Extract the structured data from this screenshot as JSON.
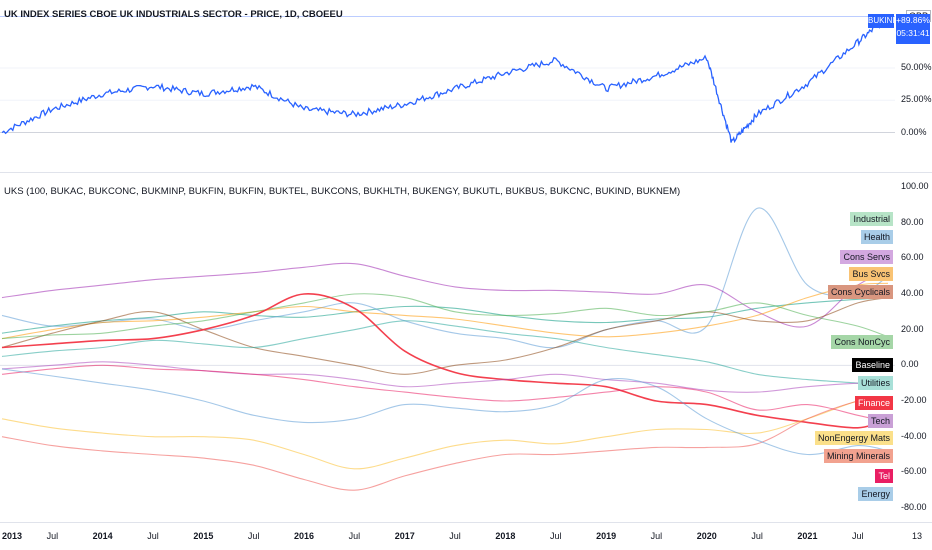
{
  "top_panel": {
    "title": "UK INDEX SERIES CBOE UK INDUSTRIALS SECTOR - PRICE, 1D, CBOEEU",
    "currency": "GBP",
    "last_label": "BUKIND",
    "last_value": "+89.86%",
    "countdown": "05:31:41",
    "y_ticks": [
      "50.00%",
      "25.00%",
      "0.00%"
    ],
    "y_tick_values": [
      50,
      25,
      0
    ],
    "y_range": [
      -12,
      95
    ],
    "price_color": "#2962ff"
  },
  "bottom_panel": {
    "title": "UKS (100, BUKAC, BUKCONC, BUKMINP, BUKFIN, BUKFIN, BUKTEL, BUKCONS, BUKHLTH, BUKENGY, BUKUTL, BUKBUS, BUKCNC, BUKIND, BUKNEM)",
    "y_ticks": [
      "100.00",
      "80.00",
      "60.00",
      "40.00",
      "20.00",
      "0.00",
      "-20.00",
      "-40.00",
      "-60.00",
      "-80.00"
    ],
    "y_tick_values": [
      100,
      80,
      60,
      40,
      20,
      0,
      -20,
      -40,
      -60,
      -80
    ]
  },
  "x_axis": {
    "labels": [
      "2013",
      "Jul",
      "2014",
      "Jul",
      "2015",
      "Jul",
      "2016",
      "Jul",
      "2017",
      "Jul",
      "2018",
      "Jul",
      "2019",
      "Jul",
      "2020",
      "Jul",
      "2021",
      "Jul",
      "13"
    ],
    "bold": [
      "2013",
      "2014",
      "2015",
      "2016",
      "2017",
      "2018",
      "2019",
      "2020",
      "2021"
    ]
  },
  "chart_data": [
    {
      "type": "line",
      "title": "UK INDEX SERIES CBOE UK INDUSTRIALS SECTOR - PRICE, 1D, CBOEEU",
      "x": [
        2013.0,
        2013.5,
        2014.0,
        2014.5,
        2015.0,
        2015.5,
        2016.0,
        2016.5,
        2017.0,
        2017.5,
        2018.0,
        2018.5,
        2019.0,
        2019.5,
        2020.0,
        2020.25,
        2020.5,
        2021.0,
        2021.5,
        2021.8
      ],
      "series": [
        {
          "name": "BUKIND",
          "values": [
            0,
            18,
            30,
            36,
            30,
            36,
            18,
            14,
            22,
            34,
            46,
            56,
            34,
            44,
            58,
            -8,
            14,
            38,
            70,
            90
          ]
        }
      ],
      "ylim": [
        -12,
        95
      ]
    },
    {
      "type": "line",
      "title": "UKS (100, BUKAC, BUKCONC, BUKMINP, BUKFIN, BUKFIN, BUKTEL, BUKCONS, BUKHLTH, BUKENGY, BUKUTL, BUKBUS, BUKCNC, BUKIND, BUKNEM)",
      "x": [
        2013.0,
        2013.5,
        2014.0,
        2014.5,
        2015.0,
        2015.5,
        2016.0,
        2016.5,
        2017.0,
        2017.5,
        2018.0,
        2018.5,
        2019.0,
        2019.5,
        2020.0,
        2020.5,
        2021.0,
        2021.5,
        2021.8
      ],
      "ylim": [
        -85,
        102
      ],
      "series": [
        {
          "name": "Industrial",
          "color": "#089981",
          "values": [
            18,
            22,
            25,
            27,
            30,
            28,
            27,
            30,
            33,
            32,
            28,
            25,
            24,
            26,
            27,
            32,
            35,
            37,
            38
          ]
        },
        {
          "name": "Health",
          "color": "#5b9bd5",
          "values": [
            28,
            22,
            24,
            26,
            20,
            25,
            30,
            35,
            25,
            18,
            15,
            10,
            20,
            25,
            22,
            88,
            45,
            40,
            50
          ]
        },
        {
          "name": "Cons Servs",
          "color": "#9c27b0",
          "values": [
            38,
            42,
            45,
            48,
            50,
            52,
            55,
            57,
            50,
            44,
            42,
            42,
            41,
            40,
            45,
            30,
            22,
            45,
            52
          ]
        },
        {
          "name": "Bus Svcs",
          "color": "#ff9800",
          "values": [
            15,
            20,
            24,
            25,
            27,
            30,
            33,
            30,
            28,
            26,
            22,
            18,
            16,
            18,
            22,
            28,
            38,
            45,
            46
          ]
        },
        {
          "name": "Cons Cyclicals",
          "color": "#8b4513",
          "values": [
            10,
            18,
            25,
            30,
            20,
            10,
            5,
            0,
            -5,
            0,
            3,
            10,
            20,
            25,
            30,
            25,
            25,
            35,
            38
          ]
        },
        {
          "name": "Cons NonCyc",
          "color": "#4caf50",
          "values": [
            15,
            17,
            18,
            22,
            25,
            30,
            35,
            40,
            38,
            30,
            28,
            29,
            32,
            28,
            30,
            35,
            28,
            22,
            16
          ]
        },
        {
          "name": "Baseline",
          "color": "#000000",
          "values": [
            0,
            0,
            0,
            0,
            0,
            0,
            0,
            0,
            0,
            0,
            0,
            0,
            0,
            0,
            0,
            0,
            0,
            0,
            0
          ]
        },
        {
          "name": "Utilities",
          "color": "#26a69a",
          "values": [
            5,
            8,
            10,
            14,
            12,
            10,
            15,
            20,
            25,
            22,
            18,
            15,
            10,
            6,
            2,
            -5,
            -8,
            -10,
            -12
          ]
        },
        {
          "name": "Finance",
          "color": "#f23645",
          "values": [
            10,
            12,
            14,
            15,
            20,
            28,
            40,
            32,
            8,
            -4,
            -8,
            -10,
            -12,
            -20,
            -22,
            -28,
            -32,
            -35,
            -30
          ]
        },
        {
          "name": "Tech",
          "color": "#ab47bc",
          "values": [
            -2,
            0,
            2,
            0,
            -3,
            -5,
            -5,
            -8,
            -12,
            -10,
            -8,
            -5,
            -8,
            -10,
            -14,
            -15,
            -12,
            -10,
            -10
          ]
        },
        {
          "name": "NonEngergy Mats",
          "color": "#fbc02d",
          "values": [
            -30,
            -35,
            -38,
            -40,
            -40,
            -42,
            -50,
            -58,
            -52,
            -45,
            -42,
            -44,
            -40,
            -36,
            -36,
            -38,
            -30,
            -20,
            -18
          ]
        },
        {
          "name": "Mining Minerals",
          "color": "#ef5350",
          "values": [
            -40,
            -45,
            -48,
            -50,
            -52,
            -56,
            -64,
            -70,
            -62,
            -55,
            -50,
            -50,
            -48,
            -46,
            -46,
            -44,
            -30,
            -20,
            -18
          ]
        },
        {
          "name": "Tel",
          "color": "#e91e63",
          "values": [
            -5,
            -2,
            0,
            -2,
            -3,
            -5,
            -8,
            -12,
            -15,
            -18,
            -20,
            -18,
            -15,
            -12,
            -15,
            -25,
            -22,
            -28,
            -32
          ]
        },
        {
          "name": "Energy",
          "color": "#5b9bd5",
          "values": [
            -2,
            -6,
            -10,
            -14,
            -20,
            -28,
            -32,
            -30,
            -22,
            -24,
            -26,
            -22,
            -8,
            -12,
            -30,
            -42,
            -50,
            -45,
            -48
          ]
        }
      ]
    }
  ],
  "tags": [
    {
      "label": "Industrial",
      "value": 82,
      "bg": "#b7e4c7"
    },
    {
      "label": "Health",
      "value": 72,
      "bg": "#a9cde8"
    },
    {
      "label": "Cons Servs",
      "value": 61,
      "bg": "#d3a8e0"
    },
    {
      "label": "Bus Svcs",
      "value": 51,
      "bg": "#f9c374"
    },
    {
      "label": "Cons Cyclicals",
      "value": 41,
      "bg": "#d9967f"
    },
    {
      "label": "Cons NonCyc",
      "value": 13,
      "bg": "#a5d6a7"
    },
    {
      "label": "Baseline",
      "value": 0,
      "bg": "#000000",
      "fg": "#ffffff"
    },
    {
      "label": "Utilities",
      "value": -10,
      "bg": "#a8e0d8"
    },
    {
      "label": "Finance",
      "value": -21,
      "bg": "#f23645",
      "fg": "#ffffff"
    },
    {
      "label": "Tech",
      "value": -31,
      "bg": "#c9a0d6"
    },
    {
      "label": "NonEngergy Mats",
      "value": -41,
      "bg": "#fbe08a"
    },
    {
      "label": "Mining Minerals",
      "value": -51,
      "bg": "#f2a28f"
    },
    {
      "label": "Tel",
      "value": -62,
      "bg": "#e91e63",
      "fg": "#ffffff"
    },
    {
      "label": "Energy",
      "value": -72,
      "bg": "#a9cde8"
    }
  ]
}
